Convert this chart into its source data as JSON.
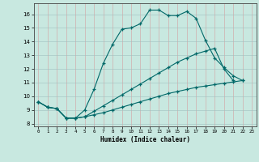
{
  "xlabel": "Humidex (Indice chaleur)",
  "bg_color": "#c8e8e0",
  "grid_color_h": "#b0d8d0",
  "grid_color_v": "#e8b8b8",
  "line_color": "#006868",
  "xlim": [
    -0.5,
    23.5
  ],
  "ylim": [
    7.8,
    16.8
  ],
  "xticks": [
    0,
    1,
    2,
    3,
    4,
    5,
    6,
    7,
    8,
    9,
    10,
    11,
    12,
    13,
    14,
    15,
    16,
    17,
    18,
    19,
    20,
    21,
    22,
    23
  ],
  "yticks": [
    8,
    9,
    10,
    11,
    12,
    13,
    14,
    15,
    16
  ],
  "line1_x": [
    0,
    1,
    2,
    3,
    4,
    5,
    6,
    7,
    8,
    9,
    10,
    11,
    12,
    13,
    14,
    15,
    16,
    17,
    18,
    19,
    20,
    21,
    22
  ],
  "line1_y": [
    9.6,
    9.2,
    9.1,
    8.4,
    8.4,
    9.0,
    10.5,
    12.4,
    13.8,
    14.9,
    15.0,
    15.3,
    16.3,
    16.3,
    15.9,
    15.9,
    16.2,
    15.7,
    14.1,
    12.8,
    12.1,
    11.5,
    11.15
  ],
  "line2_x": [
    0,
    1,
    2,
    3,
    4,
    5,
    6,
    7,
    8,
    9,
    10,
    11,
    12,
    13,
    14,
    15,
    16,
    17,
    18,
    19,
    20,
    21
  ],
  "line2_y": [
    9.6,
    9.2,
    9.1,
    8.4,
    8.4,
    8.5,
    8.9,
    9.3,
    9.7,
    10.1,
    10.5,
    10.9,
    11.3,
    11.7,
    12.1,
    12.5,
    12.8,
    13.1,
    13.3,
    13.5,
    12.0,
    11.15
  ],
  "line3_x": [
    0,
    1,
    2,
    3,
    4,
    5,
    6,
    7,
    8,
    9,
    10,
    11,
    12,
    13,
    14,
    15,
    16,
    17,
    18,
    19,
    20,
    21,
    22
  ],
  "line3_y": [
    9.6,
    9.2,
    9.1,
    8.4,
    8.4,
    8.5,
    8.65,
    8.8,
    9.0,
    9.2,
    9.4,
    9.6,
    9.8,
    10.0,
    10.2,
    10.35,
    10.5,
    10.65,
    10.75,
    10.85,
    10.95,
    11.05,
    11.15
  ]
}
